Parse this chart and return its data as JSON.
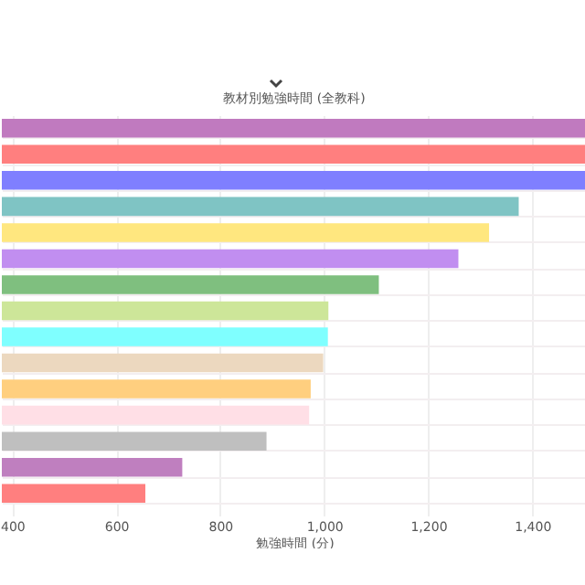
{
  "chart_data": {
    "type": "bar",
    "orientation": "horizontal",
    "title": "教材別勉強時間 (全教科)",
    "xlabel": "勉強時間 (分)",
    "categories": [
      null,
      null,
      null,
      null,
      null,
      null,
      null,
      null,
      null,
      null,
      null,
      null,
      null,
      null,
      null
    ],
    "values": [
      1505,
      1505,
      1505,
      1374,
      1317,
      1258,
      1105,
      1008,
      1007,
      998,
      974,
      971,
      889,
      727,
      656
    ],
    "colors": [
      "#c07abf",
      "#ff7f7f",
      "#7f7fff",
      "#7fc4c4",
      "#ffe77f",
      "#c18ef0",
      "#7fbf7f",
      "#cde699",
      "#7fffff",
      "#ecd8bf",
      "#ffcf7f",
      "#ffdfe6",
      "#bfbfbf",
      "#bf7fbf",
      "#ff7f7f"
    ],
    "xlim": [
      380,
      1505
    ],
    "xticks": [
      400,
      600,
      800,
      {
        "value": 1000,
        "label": "1,000"
      },
      {
        "value": 1200,
        "label": "1,200"
      },
      {
        "value": 1400,
        "label": "1,400"
      }
    ],
    "grid": true,
    "tick_labels": "x"
  }
}
